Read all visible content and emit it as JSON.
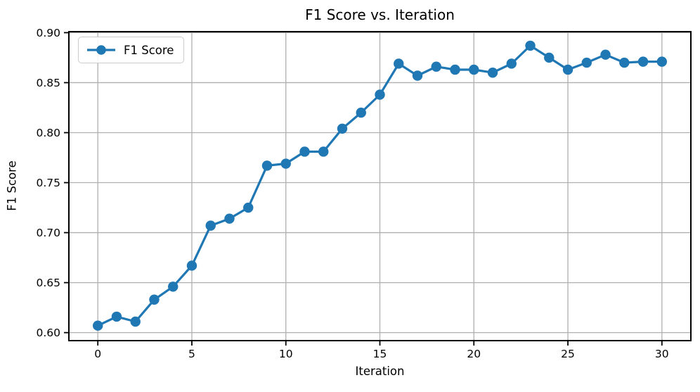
{
  "chart_data": {
    "type": "line",
    "title": "F1 Score vs. Iteration",
    "xlabel": "Iteration",
    "ylabel": "F1 Score",
    "x": [
      0,
      1,
      2,
      3,
      4,
      5,
      6,
      7,
      8,
      9,
      10,
      11,
      12,
      13,
      14,
      15,
      16,
      17,
      18,
      19,
      20,
      21,
      22,
      23,
      24,
      25,
      26,
      27,
      28,
      29,
      30
    ],
    "series": [
      {
        "name": "F1 Score",
        "color": "#1f77b4",
        "values": [
          0.607,
          0.616,
          0.611,
          0.633,
          0.646,
          0.667,
          0.707,
          0.714,
          0.725,
          0.767,
          0.769,
          0.781,
          0.781,
          0.804,
          0.82,
          0.838,
          0.869,
          0.857,
          0.866,
          0.863,
          0.863,
          0.86,
          0.869,
          0.887,
          0.875,
          0.863,
          0.87,
          0.878,
          0.87,
          0.871,
          0.871
        ]
      }
    ],
    "xticks": [
      0,
      5,
      10,
      15,
      20,
      25,
      30
    ],
    "yticks": [
      0.6,
      0.65,
      0.7,
      0.75,
      0.8,
      0.85,
      0.9
    ],
    "xtick_decimals": 0,
    "ytick_decimals": 2,
    "xlim": [
      -1.54,
      31.54
    ],
    "ylim": [
      0.592,
      0.901
    ],
    "grid": true,
    "legend": {
      "position": "upper left",
      "entries": [
        "F1 Score"
      ]
    },
    "colors": {
      "line": "#1f77b4",
      "grid": "#b0b0b0",
      "axis": "#000000",
      "tick_text": "#000000",
      "legend_border": "#cccccc",
      "background": "#ffffff"
    }
  }
}
